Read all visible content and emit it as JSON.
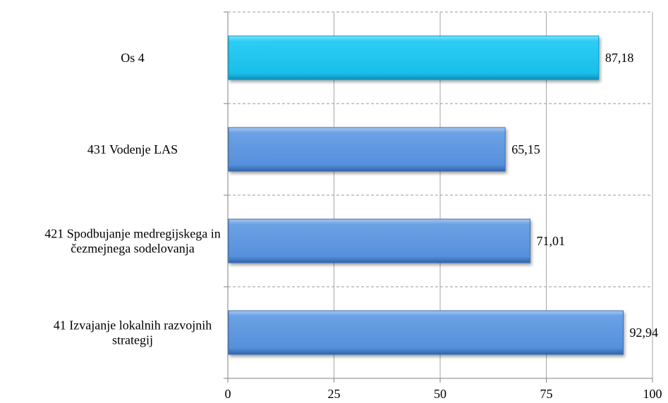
{
  "chart_data": {
    "type": "bar",
    "orientation": "horizontal",
    "categories": [
      "Os 4",
      "431 Vodenje LAS",
      "421 Spodbujanje medregijskega in čezmejnega sodelovanja",
      "41 Izvajanje lokalnih razvojnih strategij"
    ],
    "category_label_lines": [
      [
        "Os 4"
      ],
      [
        "431 Vodenje LAS"
      ],
      [
        "421 Spodbujanje medregijskega in",
        "čezmejnega sodelovanja"
      ],
      [
        "41 Izvajanje lokalnih razvojnih",
        "strategij"
      ]
    ],
    "values": [
      87.18,
      65.15,
      71.01,
      92.94
    ],
    "data_labels": [
      "87,18",
      "65,15",
      "71,01",
      "92,94"
    ],
    "bar_colors": [
      "#1ec8f2",
      "#5b96df",
      "#5b96df",
      "#5b96df"
    ],
    "xlim": [
      0,
      100
    ],
    "x_ticks": [
      0,
      25,
      50,
      75,
      100
    ],
    "x_tick_labels": [
      "0",
      "25",
      "50",
      "75",
      "100"
    ],
    "grid": true,
    "legend": "none",
    "title": "",
    "xlabel": "",
    "ylabel": ""
  }
}
